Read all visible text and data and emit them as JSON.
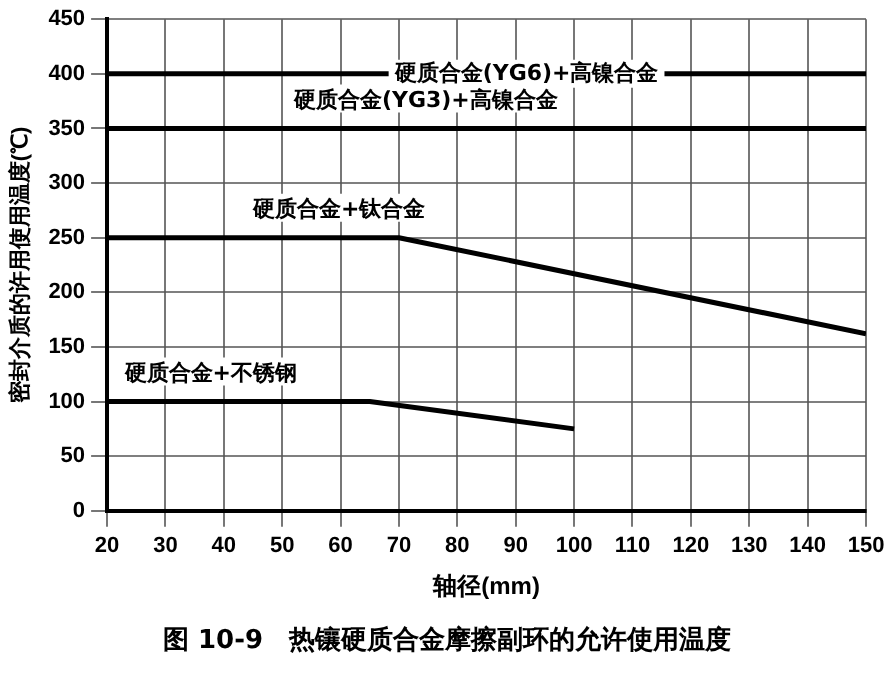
{
  "chart_data": {
    "type": "line",
    "title": "图 10-9　热镶硬质合金摩擦副环的允许使用温度",
    "xlabel": "轴径(mm)",
    "ylabel": "密封介质的许用使用温度(℃)",
    "xlim": [
      20,
      150
    ],
    "xticks": [
      20,
      30,
      40,
      50,
      60,
      70,
      80,
      90,
      100,
      110,
      120,
      130,
      140,
      150
    ],
    "ylim": [
      0,
      450
    ],
    "yticks": [
      0,
      50,
      100,
      150,
      200,
      250,
      300,
      350,
      400,
      450
    ],
    "grid": true,
    "legend": false,
    "marker": "none",
    "line_style": "solid",
    "series": [
      {
        "name": "硬质合金(YG6)+高镍合金",
        "color": "#000000",
        "x": [
          20,
          150
        ],
        "values": [
          400,
          400
        ]
      },
      {
        "name": "硬质合金(YG3)+高镍合金",
        "color": "#000000",
        "x": [
          20,
          150
        ],
        "values": [
          350,
          350
        ]
      },
      {
        "name": "硬质合金+钛合金",
        "color": "#000000",
        "x": [
          20,
          70,
          150
        ],
        "values": [
          250,
          250,
          162
        ]
      },
      {
        "name": "硬质合金+不锈钢",
        "color": "#000000",
        "x": [
          20,
          65,
          100
        ],
        "values": [
          100,
          100,
          75
        ]
      }
    ]
  }
}
